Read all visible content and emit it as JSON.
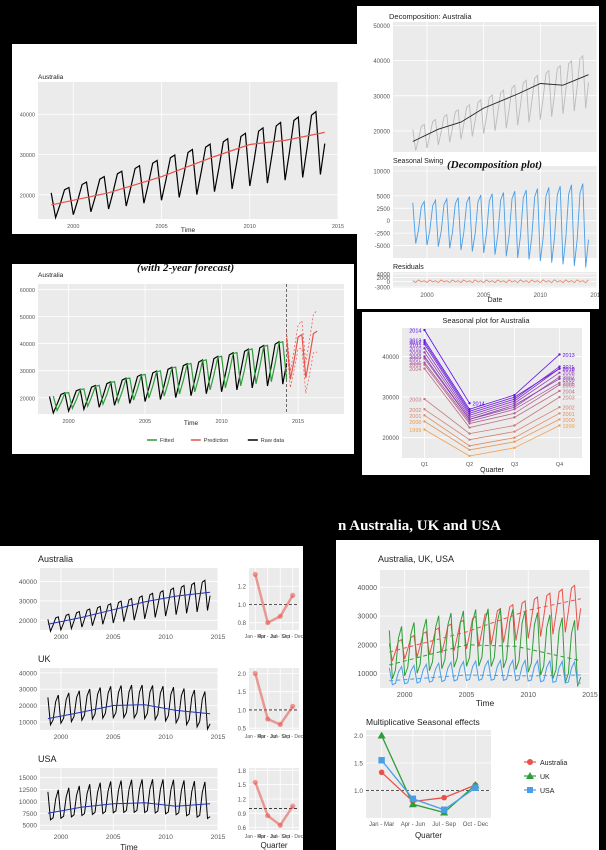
{
  "captions": {
    "decomposition": "(Decomposition plot)",
    "forecast": "(with 2-year forecast)",
    "heading_fragment": "n Australia, UK and USA"
  },
  "colors": {
    "raw": "#000000",
    "trend_red": "#e8524a",
    "fitted": "#2e9e3a",
    "season_blue": "#4a9ee8",
    "resid": "#e8866a",
    "blue_trend": "#2233bb"
  },
  "chart_data": [
    {
      "id": "p1",
      "type": "line",
      "title": "Australia",
      "xlabel": "Time",
      "ylabel": "",
      "xlim": [
        1998,
        2015
      ],
      "ylim": [
        14000,
        48000
      ],
      "xticks": [
        2000,
        2005,
        2010,
        2015
      ],
      "yticks": [
        20000,
        30000,
        40000
      ],
      "series": [
        {
          "name": "",
          "kind": "seasonal",
          "color": "#000000",
          "start": 1998.75,
          "end": 2014.25,
          "base": [
            18000,
            35000
          ],
          "amp": [
            4500,
            11500
          ],
          "pattern": [
            0.55,
            -0.85,
            -0.2,
            0.5
          ]
        },
        {
          "name": "",
          "kind": "trend",
          "color": "#e8524a",
          "points": [
            [
              1998.75,
              17500
            ],
            [
              2002,
              20500
            ],
            [
              2005,
              24500
            ],
            [
              2008,
              29500
            ],
            [
              2010,
              32500
            ],
            [
              2012,
              33500
            ],
            [
              2014.25,
              35500
            ]
          ]
        }
      ]
    },
    {
      "id": "p2",
      "type": "line",
      "title": "Decomposition: Australia",
      "xlabel": "Date",
      "xlim": [
        1997,
        2015
      ],
      "xticks": [
        2000,
        2005,
        2010,
        2015
      ],
      "subpanels": [
        {
          "label": "",
          "ylim": [
            14000,
            51000
          ],
          "yticks": [
            20000,
            30000,
            40000,
            50000
          ],
          "series": [
            {
              "kind": "seasonal",
              "color": "#bbbbbb",
              "start": 1998.75,
              "end": 2014.25,
              "base": [
                18000,
                36000
              ],
              "amp": [
                4500,
                11000
              ],
              "pattern": [
                0.55,
                -0.85,
                -0.2,
                0.5
              ]
            },
            {
              "kind": "trend",
              "color": "#222222",
              "points": [
                [
                  1998.75,
                  17000
                ],
                [
                  2001,
                  20500
                ],
                [
                  2003,
                  22500
                ],
                [
                  2005,
                  26500
                ],
                [
                  2008,
                  30500
                ],
                [
                  2010,
                  33500
                ],
                [
                  2012,
                  33000
                ],
                [
                  2014.25,
                  36000
                ]
              ]
            }
          ]
        },
        {
          "label": "Seasonal Swing",
          "ylim": [
            -7500,
            11000
          ],
          "yticks": [
            -5000,
            -2500,
            0,
            2500,
            5000,
            10000
          ],
          "series": [
            {
              "kind": "seasonal",
              "color": "#4a9ee8",
              "start": 1998.75,
              "end": 2014.25,
              "base": [
                0,
                0
              ],
              "amp": [
                4500,
                9500
              ],
              "pattern": [
                0.8,
                -1.0,
                -0.4,
                0.6
              ]
            }
          ]
        },
        {
          "label": "Residuals",
          "ylim": [
            -3500,
            5000
          ],
          "yticks": [
            -3000,
            0,
            2000,
            4000
          ],
          "series": [
            {
              "kind": "seasonal",
              "color": "#e8866a",
              "start": 1998.75,
              "end": 2014.25,
              "base": [
                0,
                0
              ],
              "amp": [
                900,
                1100
              ],
              "pattern": [
                0.4,
                -0.6,
                0.8,
                -0.3
              ]
            }
          ]
        }
      ]
    },
    {
      "id": "p3",
      "type": "line",
      "title": "Australia",
      "xlabel": "Time",
      "xlim": [
        1998,
        2018
      ],
      "ylim": [
        14000,
        62000
      ],
      "xticks": [
        2000,
        2005,
        2010,
        2015
      ],
      "yticks": [
        20000,
        30000,
        40000,
        50000,
        60000
      ],
      "forecast_start": 2014.25,
      "legend": [
        "Fitted",
        "Prediction",
        "Raw data"
      ],
      "series": [
        {
          "name": "Raw data",
          "kind": "seasonal",
          "color": "#000000",
          "start": 1998.75,
          "end": 2014.25,
          "base": [
            18000,
            35000
          ],
          "amp": [
            4500,
            11500
          ],
          "pattern": [
            0.55,
            -0.85,
            -0.2,
            0.5
          ]
        },
        {
          "name": "Fitted",
          "kind": "seasonal",
          "color": "#2e9e3a",
          "start": 1999.0,
          "end": 2014.25,
          "base": [
            18500,
            35500
          ],
          "amp": [
            4200,
            11000
          ],
          "pattern": [
            0.5,
            -0.8,
            -0.2,
            0.5
          ]
        },
        {
          "name": "Prediction",
          "kind": "seasonal",
          "color": "#e8524a",
          "start": 2014.25,
          "end": 2016.25,
          "base": [
            36000,
            38000
          ],
          "amp": [
            11000,
            12000
          ],
          "pattern": [
            0.55,
            -0.85,
            -0.2,
            0.5
          ],
          "band": 6000
        }
      ]
    },
    {
      "id": "p4",
      "type": "line",
      "title": "Seasonal plot for Australia",
      "xlabel": "Quarter",
      "categories": [
        "Q1",
        "Q2",
        "Q3",
        "Q4"
      ],
      "ylim": [
        15000,
        47000
      ],
      "yticks": [
        20000,
        30000,
        40000
      ],
      "series": [
        {
          "name": "1999",
          "values": [
            22000,
            15500,
            17500,
            23000
          ]
        },
        {
          "name": "2000",
          "values": [
            24000,
            17000,
            19000,
            24500
          ]
        },
        {
          "name": "2001",
          "values": [
            25500,
            18000,
            20000,
            26000
          ]
        },
        {
          "name": "2002",
          "values": [
            27000,
            19500,
            21500,
            27500
          ]
        },
        {
          "name": "2003",
          "values": [
            29500,
            21000,
            23000,
            30000
          ]
        },
        {
          "name": "2004",
          "values": [
            37000,
            22500,
            25000,
            31500
          ]
        },
        {
          "name": "2005",
          "values": [
            38000,
            23500,
            26000,
            33000
          ]
        },
        {
          "name": "2006",
          "values": [
            38500,
            24000,
            27000,
            33500
          ]
        },
        {
          "name": "2007",
          "values": [
            39500,
            24500,
            27500,
            35000
          ]
        },
        {
          "name": "2008",
          "values": [
            41000,
            25000,
            28500,
            36000
          ]
        },
        {
          "name": "2009",
          "values": [
            40000,
            24500,
            28000,
            34500
          ]
        },
        {
          "name": "2010",
          "values": [
            42000,
            25500,
            29000,
            37000
          ]
        },
        {
          "name": "2011",
          "values": [
            43000,
            26000,
            29500,
            37500
          ]
        },
        {
          "name": "2012",
          "values": [
            43500,
            26500,
            30000,
            37000
          ]
        },
        {
          "name": "2013",
          "values": [
            44000,
            27000,
            30500,
            40500
          ]
        },
        {
          "name": "2014",
          "values": [
            46500,
            28500,
            null,
            null
          ]
        }
      ]
    },
    {
      "id": "p5",
      "type": "line",
      "title": "Australia",
      "xlabel": "",
      "xlim": [
        1998,
        2015
      ],
      "ylim": [
        15000,
        47000
      ],
      "xticks": [
        2000,
        2005,
        2010,
        2015
      ],
      "yticks": [
        20000,
        30000,
        40000
      ],
      "series": [
        {
          "kind": "seasonal",
          "color": "#000000",
          "start": 1998.75,
          "end": 2014.25,
          "base": [
            18000,
            35000
          ],
          "amp": [
            4500,
            11500
          ],
          "pattern": [
            0.55,
            -0.85,
            -0.2,
            0.5
          ]
        },
        {
          "kind": "trend",
          "color": "#2233bb",
          "points": [
            [
              1998.75,
              18000
            ],
            [
              2002,
              21500
            ],
            [
              2005,
              25500
            ],
            [
              2008,
              29500
            ],
            [
              2011,
              32500
            ],
            [
              2014.25,
              34500
            ]
          ]
        }
      ]
    },
    {
      "id": "p6",
      "type": "line",
      "title": "UK",
      "xlabel": "",
      "xlim": [
        1998,
        2015
      ],
      "ylim": [
        5000,
        43000
      ],
      "xticks": [
        2000,
        2005,
        2010,
        2015
      ],
      "yticks": [
        10000,
        20000,
        30000,
        40000
      ],
      "series": [
        {
          "kind": "seasonal",
          "color": "#000000",
          "start": 1998.75,
          "end": 2014.25,
          "base": [
            16000,
            16000
          ],
          "amp": [
            9000,
            12000
          ],
          "pattern": [
            1.0,
            -0.9,
            -0.6,
            0.6
          ],
          "hump": 6000
        },
        {
          "kind": "trend",
          "color": "#2233bb",
          "points": [
            [
              1998.75,
              12000
            ],
            [
              2002,
              16000
            ],
            [
              2005,
              20000
            ],
            [
              2008,
              20500
            ],
            [
              2011,
              17000
            ],
            [
              2014.25,
              15000
            ]
          ]
        }
      ]
    },
    {
      "id": "p7",
      "type": "line",
      "title": "USA",
      "xlabel": "Time",
      "xlim": [
        1998,
        2015
      ],
      "ylim": [
        4000,
        17000
      ],
      "xticks": [
        2000,
        2005,
        2010,
        2015
      ],
      "yticks": [
        5000,
        7500,
        10000,
        12500,
        15000
      ],
      "series": [
        {
          "kind": "seasonal",
          "color": "#000000",
          "start": 1998.75,
          "end": 2014.25,
          "base": [
            8500,
            9500
          ],
          "amp": [
            3500,
            4500
          ],
          "pattern": [
            1.0,
            -0.7,
            -0.6,
            0.5
          ],
          "hump": 1500
        },
        {
          "kind": "trend",
          "color": "#2233bb",
          "points": [
            [
              1998.75,
              7500
            ],
            [
              2002,
              8800
            ],
            [
              2005,
              9500
            ],
            [
              2008,
              9700
            ],
            [
              2011,
              9000
            ],
            [
              2014.25,
              9500
            ]
          ]
        }
      ]
    },
    {
      "id": "p8",
      "type": "line",
      "title": "",
      "xlabel": "",
      "categories": [
        "Jan - Mar",
        "Apr - Jun",
        "Jul - Sep",
        "Oct - Dec"
      ],
      "ylim": [
        0.72,
        1.4
      ],
      "yticks": [
        0.8,
        1.0,
        1.2
      ],
      "refline": 1.0,
      "series": [
        {
          "name": "Australia",
          "values": [
            1.33,
            0.8,
            0.87,
            1.1
          ]
        }
      ]
    },
    {
      "id": "p9",
      "type": "line",
      "title": "",
      "xlabel": "",
      "categories": [
        "Jan - Mar",
        "Apr - Jun",
        "Jul - Sep",
        "Oct - Dec"
      ],
      "ylim": [
        0.45,
        2.15
      ],
      "yticks": [
        0.5,
        1.0,
        1.5,
        2.0
      ],
      "refline": 1.0,
      "series": [
        {
          "name": "UK",
          "values": [
            2.0,
            0.75,
            0.6,
            1.1
          ]
        }
      ]
    },
    {
      "id": "p10",
      "type": "line",
      "title": "",
      "xlabel": "Quarter",
      "categories": [
        "Jan - Mar",
        "Apr - Jun",
        "Jul - Sep",
        "Oct - Dec"
      ],
      "ylim": [
        0.55,
        1.85
      ],
      "yticks": [
        0.6,
        0.9,
        1.2,
        1.5,
        1.8
      ],
      "refline": 1.0,
      "series": [
        {
          "name": "USA",
          "values": [
            1.55,
            0.85,
            0.65,
            1.05
          ]
        }
      ]
    },
    {
      "id": "p11",
      "type": "line",
      "title": "Australia, UK, USA",
      "xlabel": "Time",
      "xlim": [
        1998,
        2015
      ],
      "ylim": [
        5000,
        46000
      ],
      "xticks": [
        2000,
        2005,
        2010,
        2015
      ],
      "yticks": [
        10000,
        20000,
        30000,
        40000
      ],
      "series": [
        {
          "name": "Australia",
          "kind": "seasonal",
          "color": "#e8524a",
          "start": 1998.75,
          "end": 2014.25,
          "base": [
            18000,
            35000
          ],
          "amp": [
            4500,
            11500
          ],
          "pattern": [
            0.55,
            -0.85,
            -0.2,
            0.5
          ]
        },
        {
          "name": "UK",
          "kind": "seasonal",
          "color": "#2e9e3a",
          "start": 1998.75,
          "end": 2014.25,
          "base": [
            16000,
            16000
          ],
          "amp": [
            9000,
            12000
          ],
          "pattern": [
            1.0,
            -0.9,
            -0.6,
            0.6
          ],
          "hump": 6000
        },
        {
          "name": "USA",
          "kind": "seasonal",
          "color": "#4a9ee8",
          "start": 1998.75,
          "end": 2014.25,
          "base": [
            8500,
            9500
          ],
          "amp": [
            3500,
            4500
          ],
          "pattern": [
            1.0,
            -0.7,
            -0.6,
            0.5
          ],
          "hump": 1500
        },
        {
          "name": "",
          "kind": "trend",
          "dashed": true,
          "color": "#e8524a",
          "points": [
            [
              1998.75,
              17500
            ],
            [
              2005,
              24500
            ],
            [
              2010,
              32000
            ],
            [
              2014.25,
              36000
            ]
          ]
        },
        {
          "name": "",
          "kind": "trend",
          "dashed": true,
          "color": "#2e9e3a",
          "points": [
            [
              1998.75,
              13000
            ],
            [
              2005,
              20000
            ],
            [
              2009,
              19500
            ],
            [
              2014.25,
              14500
            ]
          ]
        },
        {
          "name": "",
          "kind": "trend",
          "dashed": true,
          "color": "#4a9ee8",
          "points": [
            [
              1998.75,
              7500
            ],
            [
              2005,
              9500
            ],
            [
              2010,
              9200
            ],
            [
              2014.25,
              9500
            ]
          ]
        }
      ]
    },
    {
      "id": "p12",
      "type": "line",
      "title": "Multiplicative Seasonal effects",
      "xlabel": "Quarter",
      "categories": [
        "Jan - Mar",
        "Apr - Jun",
        "Jul - Sep",
        "Oct - Dec"
      ],
      "ylim": [
        0.5,
        2.1
      ],
      "yticks": [
        1.0,
        1.5,
        2.0
      ],
      "refline": 1.0,
      "legend": [
        "Australia",
        "UK",
        "USA"
      ],
      "series": [
        {
          "name": "Australia",
          "color": "#e8524a",
          "marker": "circle",
          "values": [
            1.33,
            0.8,
            0.87,
            1.1
          ]
        },
        {
          "name": "UK",
          "color": "#2e9e3a",
          "marker": "triangle",
          "values": [
            2.0,
            0.75,
            0.6,
            1.1
          ]
        },
        {
          "name": "USA",
          "color": "#4a9ee8",
          "marker": "square",
          "values": [
            1.55,
            0.85,
            0.65,
            1.05
          ]
        }
      ]
    }
  ]
}
